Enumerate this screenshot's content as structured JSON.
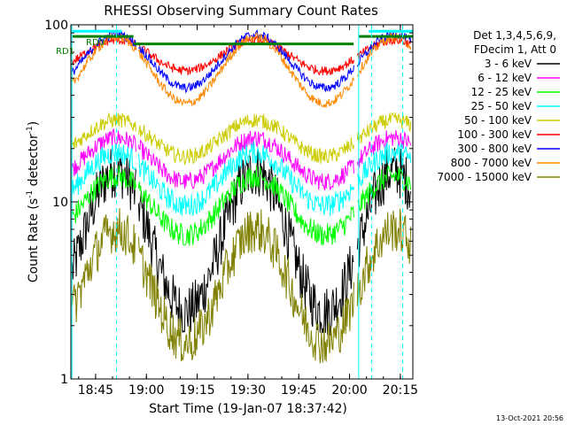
{
  "chart_data": {
    "type": "line",
    "title": "RHESSI Observing Summary Count Rates",
    "xlabel": "Start Time (19-Jan-07 18:37:42)",
    "ylabel_main": "Count Rate (s",
    "ylabel_sup": "-1",
    "ylabel_tail": " detector",
    "ylabel_sup2": "-1",
    "ylabel_close": ")",
    "yscale": "log",
    "ylim": [
      1,
      100
    ],
    "xlim_minutes": [
      0,
      101
    ],
    "x_ticks": [
      {
        "label": "18:45",
        "minutes": 7.3
      },
      {
        "label": "19:00",
        "minutes": 22.3
      },
      {
        "label": "19:15",
        "minutes": 37.3
      },
      {
        "label": "19:30",
        "minutes": 52.3
      },
      {
        "label": "19:45",
        "minutes": 67.3
      },
      {
        "label": "20:00",
        "minutes": 82.3
      },
      {
        "label": "20:15",
        "minutes": 97.3
      }
    ],
    "y_ticks": [
      {
        "label": "1",
        "value": 1
      },
      {
        "label": "10",
        "value": 10
      },
      {
        "label": "100",
        "value": 100
      }
    ],
    "legend_header": [
      "Det 1,3,4,5,6,9,",
      "FDecim 1, Att 0"
    ],
    "legend_placement": "right",
    "footer_timestamp": "13-Oct-2021 20:56",
    "annotations": {
      "rd0": "RD0",
      "rd1": "RD1"
    },
    "series": [
      {
        "name": "3 - 6 keV",
        "color": "#000000",
        "peak": 15,
        "trough": 2.4,
        "noise": 0.35
      },
      {
        "name": "6 - 12 keV",
        "color": "#ff00ff",
        "peak": 23,
        "trough": 13,
        "noise": 0.12
      },
      {
        "name": "12 - 25 keV",
        "color": "#00ff00",
        "peak": 14,
        "trough": 6.5,
        "noise": 0.15
      },
      {
        "name": "25 - 50 keV",
        "color": "#00ffff",
        "peak": 19,
        "trough": 9.5,
        "noise": 0.15
      },
      {
        "name": "50 - 100 keV",
        "color": "#cccc00",
        "peak": 29,
        "trough": 18,
        "noise": 0.1
      },
      {
        "name": "100 - 300 keV",
        "color": "#ff0000",
        "peak": 82,
        "trough": 55,
        "noise": 0.06
      },
      {
        "name": "300 - 800 keV",
        "color": "#0000ff",
        "peak": 88,
        "trough": 44,
        "noise": 0.06
      },
      {
        "name": "800 - 7000 keV",
        "color": "#ff8800",
        "peak": 85,
        "trough": 36,
        "noise": 0.06
      },
      {
        "name": "7000 - 15000 keV",
        "color": "#808000",
        "peak": 7,
        "trough": 1.6,
        "noise": 0.3
      }
    ],
    "orbit_peaks_minutes": [
      13.5,
      54.5
    ],
    "orbit_period_minutes": 41,
    "dashed_vlines_minutes": [
      13.5,
      88.8,
      98.0
    ],
    "solid_vlines_minutes": [
      0.3,
      85.0
    ],
    "green_bars": [
      {
        "start": 0.5,
        "end": 18.5,
        "value": 86
      },
      {
        "start": 18.5,
        "end": 83.5,
        "value": 78
      },
      {
        "start": 85,
        "end": 101,
        "value": 86
      }
    ],
    "cyan_bars": [
      {
        "start": 0.5,
        "end": 15,
        "value": 92
      },
      {
        "start": 88,
        "end": 101,
        "value": 92
      }
    ]
  }
}
